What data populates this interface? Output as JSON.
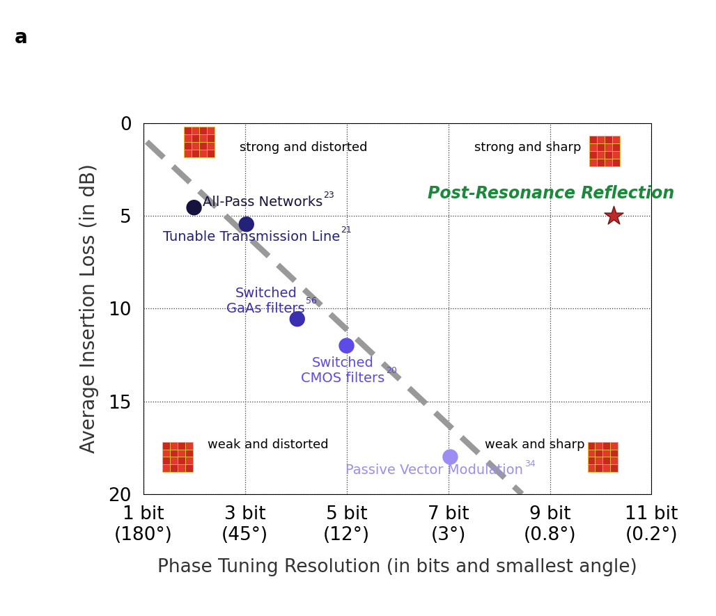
{
  "chart_data": {
    "type": "scatter",
    "panel_label": "a",
    "xlabel": "Phase Tuning Resolution (in bits and smallest angle)",
    "ylabel": "Average Insertion Loss (in dB)",
    "xlim": [
      1,
      11
    ],
    "xticks": [
      {
        "value": 1,
        "label": "1 bit\n(180°)"
      },
      {
        "value": 3,
        "label": "3 bit\n(45°)"
      },
      {
        "value": 5,
        "label": "5 bit\n(12°)"
      },
      {
        "value": 7,
        "label": "7 bit\n(3°)"
      },
      {
        "value": 9,
        "label": "9 bit\n(0.8°)"
      },
      {
        "value": 11,
        "label": "11 bit\n(0.2°)"
      }
    ],
    "ylim": [
      20,
      0
    ],
    "yticks": [
      0,
      5,
      10,
      15,
      20
    ],
    "grid": true,
    "series": [
      {
        "name": "All-Pass Networks",
        "ref": "23",
        "color": "#16123f",
        "marker": "circle",
        "x": [
          2.0
        ],
        "values": [
          4.55
        ]
      },
      {
        "name": "Tunable Transmission Line",
        "ref": "21",
        "color": "#24217a",
        "marker": "circle",
        "x": [
          3.03
        ],
        "values": [
          5.45
        ]
      },
      {
        "name": "Switched\nGaAs filters",
        "ref": "56",
        "color": "#3a2fb0",
        "marker": "circle",
        "x": [
          4.03
        ],
        "values": [
          10.56
        ]
      },
      {
        "name": "Switched\nCMOS filters",
        "ref": "20",
        "color": "#5e4ae6",
        "marker": "circle",
        "x": [
          5.0
        ],
        "values": [
          12.0
        ]
      },
      {
        "name": "Passive Vector Modulation",
        "ref": "34",
        "color": "#9d8cf2",
        "marker": "circle",
        "x": [
          7.04
        ],
        "values": [
          18.0
        ]
      },
      {
        "name": "Post-Resonance Reflection",
        "color": "#c0282a",
        "marker": "star",
        "x": [
          10.25
        ],
        "values": [
          5.0
        ]
      },
      {
        "type": "line",
        "line_style": "dashed",
        "color": "#999999",
        "x": [
          1.07,
          8.45
        ],
        "values": [
          1.0,
          20.0
        ]
      }
    ],
    "annotations": [
      "strong and distorted",
      "strong and sharp",
      "weak and distorted",
      "weak and sharp"
    ]
  }
}
